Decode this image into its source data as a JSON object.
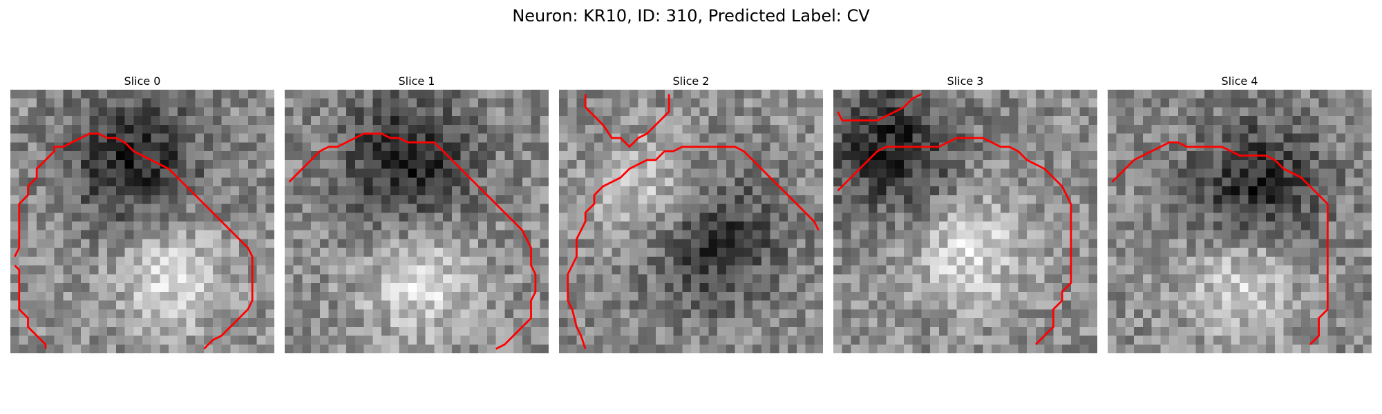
{
  "figure": {
    "title": "Neuron: KR10, ID: 310, Predicted Label: CV"
  },
  "slices": [
    {
      "title": "Slice 0",
      "seed": 11,
      "bright_center": [
        0.6,
        0.7
      ],
      "dark_band": [
        0.45,
        0.25
      ]
    },
    {
      "title": "Slice 1",
      "seed": 23,
      "bright_center": [
        0.5,
        0.72
      ],
      "dark_band": [
        0.45,
        0.25
      ]
    },
    {
      "title": "Slice 2",
      "seed": 37,
      "bright_center": [
        0.35,
        0.4
      ],
      "dark_band": [
        0.55,
        0.55
      ]
    },
    {
      "title": "Slice 3",
      "seed": 41,
      "bright_center": [
        0.5,
        0.6
      ],
      "dark_band": [
        0.2,
        0.2
      ]
    },
    {
      "title": "Slice 4",
      "seed": 53,
      "bright_center": [
        0.5,
        0.7
      ],
      "dark_band": [
        0.55,
        0.35
      ]
    }
  ],
  "colors": {
    "contour": "#ff0000",
    "pixel_dark": "#000000",
    "pixel_light": "#ffffff"
  },
  "grid_cells": 30
}
